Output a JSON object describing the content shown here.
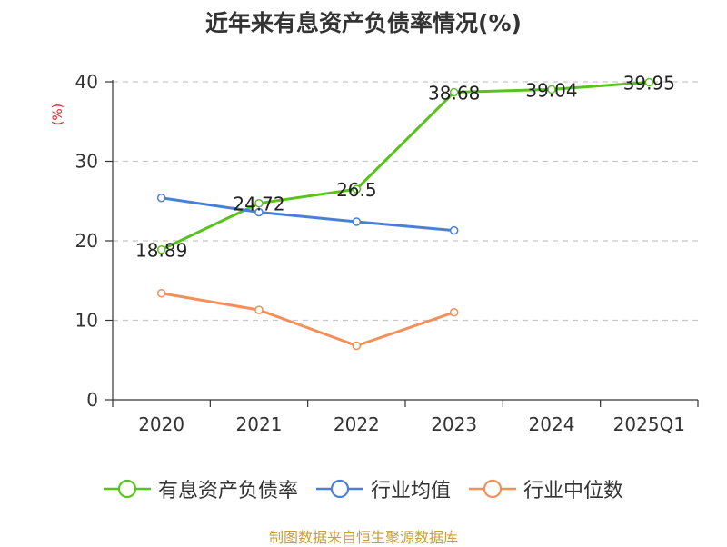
{
  "title": "近年来有息资产负债率情况(%)",
  "source": "制图数据来自恒生聚源数据库",
  "chart_data": {
    "type": "line",
    "title": "近年来有息资产负债率情况(%)",
    "xlabel": "",
    "ylabel": "(%)",
    "categories": [
      "2020",
      "2021",
      "2022",
      "2023",
      "2024",
      "2025Q1"
    ],
    "ylim": [
      0,
      40
    ],
    "yticks": [
      0,
      10,
      20,
      30,
      40
    ],
    "grid": true,
    "legend_position": "bottom",
    "series": [
      {
        "name": "有息资产负债率",
        "color": "#5ac21e",
        "values": [
          18.89,
          24.72,
          26.5,
          38.68,
          39.04,
          39.95
        ],
        "labels": [
          "18.89",
          "24.72",
          "26.5",
          "38.68",
          "39.04",
          "39.95"
        ]
      },
      {
        "name": "行业均值",
        "color": "#4a7fd8",
        "values": [
          25.4,
          23.6,
          22.4,
          21.3,
          null,
          null
        ]
      },
      {
        "name": "行业中位数",
        "color": "#f58f5a",
        "values": [
          13.4,
          11.3,
          6.8,
          11.0,
          null,
          null
        ]
      }
    ]
  }
}
